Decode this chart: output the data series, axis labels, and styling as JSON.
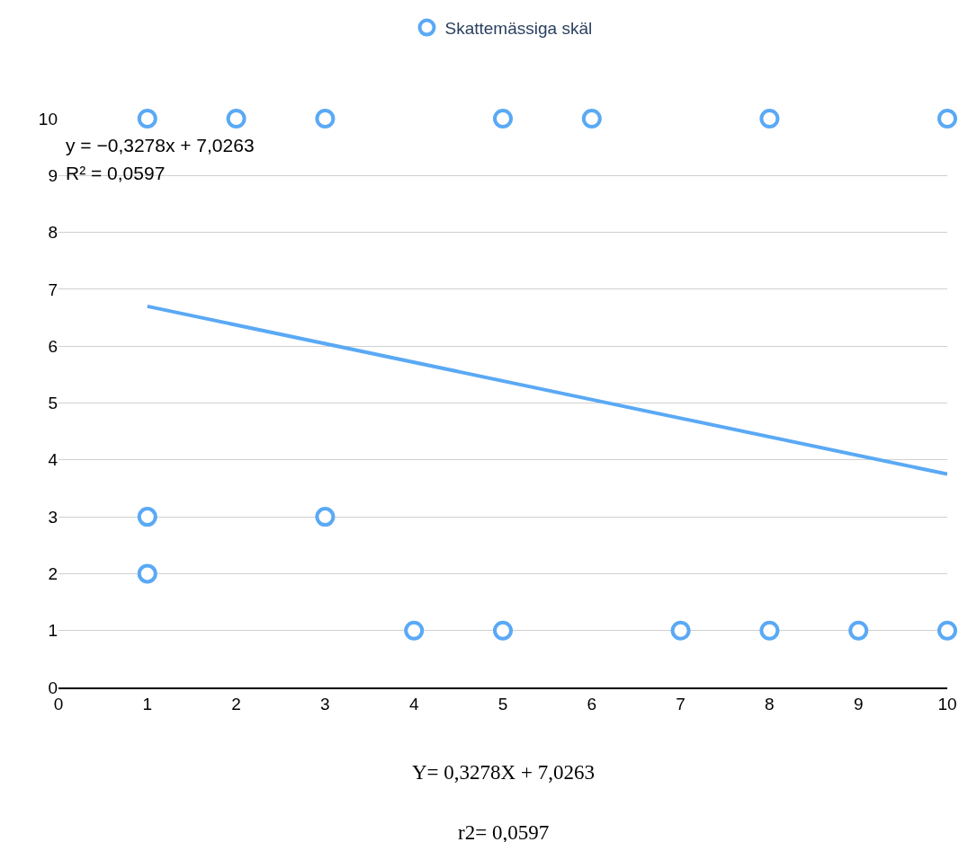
{
  "chart_data": {
    "type": "scatter",
    "xlim": [
      0,
      10
    ],
    "ylim": [
      0,
      10
    ],
    "xticks": [
      0,
      1,
      2,
      3,
      4,
      5,
      6,
      7,
      8,
      9,
      10
    ],
    "yticks": [
      0,
      1,
      2,
      3,
      4,
      5,
      6,
      7,
      8,
      9,
      10
    ],
    "grid": "y",
    "legend": "top",
    "marker": "circle",
    "series": [
      {
        "name": "Skattemässiga skäl",
        "color": "#5aa9f5",
        "x": [
          1,
          2,
          3,
          5,
          6,
          8,
          10,
          1,
          3,
          1,
          4,
          5,
          7,
          8,
          9,
          10
        ],
        "values": [
          10,
          10,
          10,
          10,
          10,
          10,
          10,
          3,
          3,
          2,
          1,
          1,
          1,
          1,
          1,
          1
        ]
      },
      {
        "type": "line",
        "color": "#5aa9f5",
        "line_style": "solid",
        "marker": "none",
        "x": [
          1,
          10
        ],
        "values": [
          6.7,
          3.75
        ]
      }
    ],
    "annotations": [
      "y = −0,3278x + 7,0263",
      "R² = 0,0597",
      "Y= 0,3278X + 7,0263",
      "r2= 0,0597"
    ]
  }
}
